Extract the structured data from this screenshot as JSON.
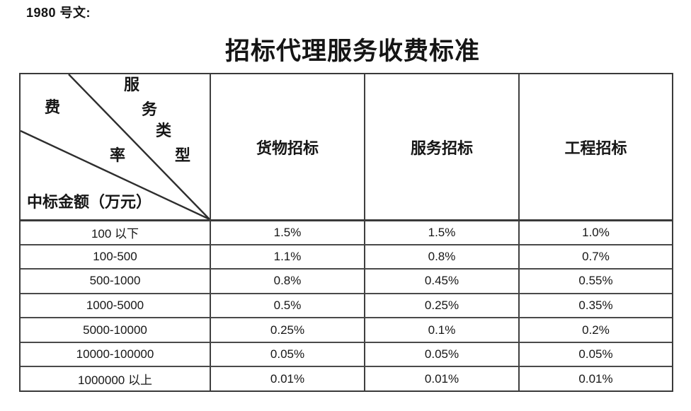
{
  "page": {
    "doc_number": "1980 号文:",
    "title": "招标代理服务收费标准"
  },
  "table": {
    "corner": {
      "diagonal_label": "服务类型",
      "diagonal_chars": [
        "服",
        "务",
        "类",
        "型"
      ],
      "middle_label": "费率",
      "middle_chars": [
        "费",
        "率"
      ],
      "bottom_label": "中标金额（万元）"
    },
    "column_headers": [
      "货物招标",
      "服务招标",
      "工程招标"
    ],
    "rows": [
      {
        "amount": "100 以下",
        "values": [
          "1.5%",
          "1.5%",
          "1.0%"
        ]
      },
      {
        "amount": "100-500",
        "values": [
          "1.1%",
          "0.8%",
          "0.7%"
        ]
      },
      {
        "amount": "500-1000",
        "values": [
          "0.8%",
          "0.45%",
          "0.55%"
        ]
      },
      {
        "amount": "1000-5000",
        "values": [
          "0.5%",
          "0.25%",
          "0.35%"
        ]
      },
      {
        "amount": "5000-10000",
        "values": [
          "0.25%",
          "0.1%",
          "0.2%"
        ]
      },
      {
        "amount": "10000-100000",
        "values": [
          "0.05%",
          "0.05%",
          "0.05%"
        ]
      },
      {
        "amount": "1000000 以上",
        "values": [
          "0.01%",
          "0.01%",
          "0.01%"
        ]
      }
    ],
    "line_color": "#2e2e2e"
  }
}
